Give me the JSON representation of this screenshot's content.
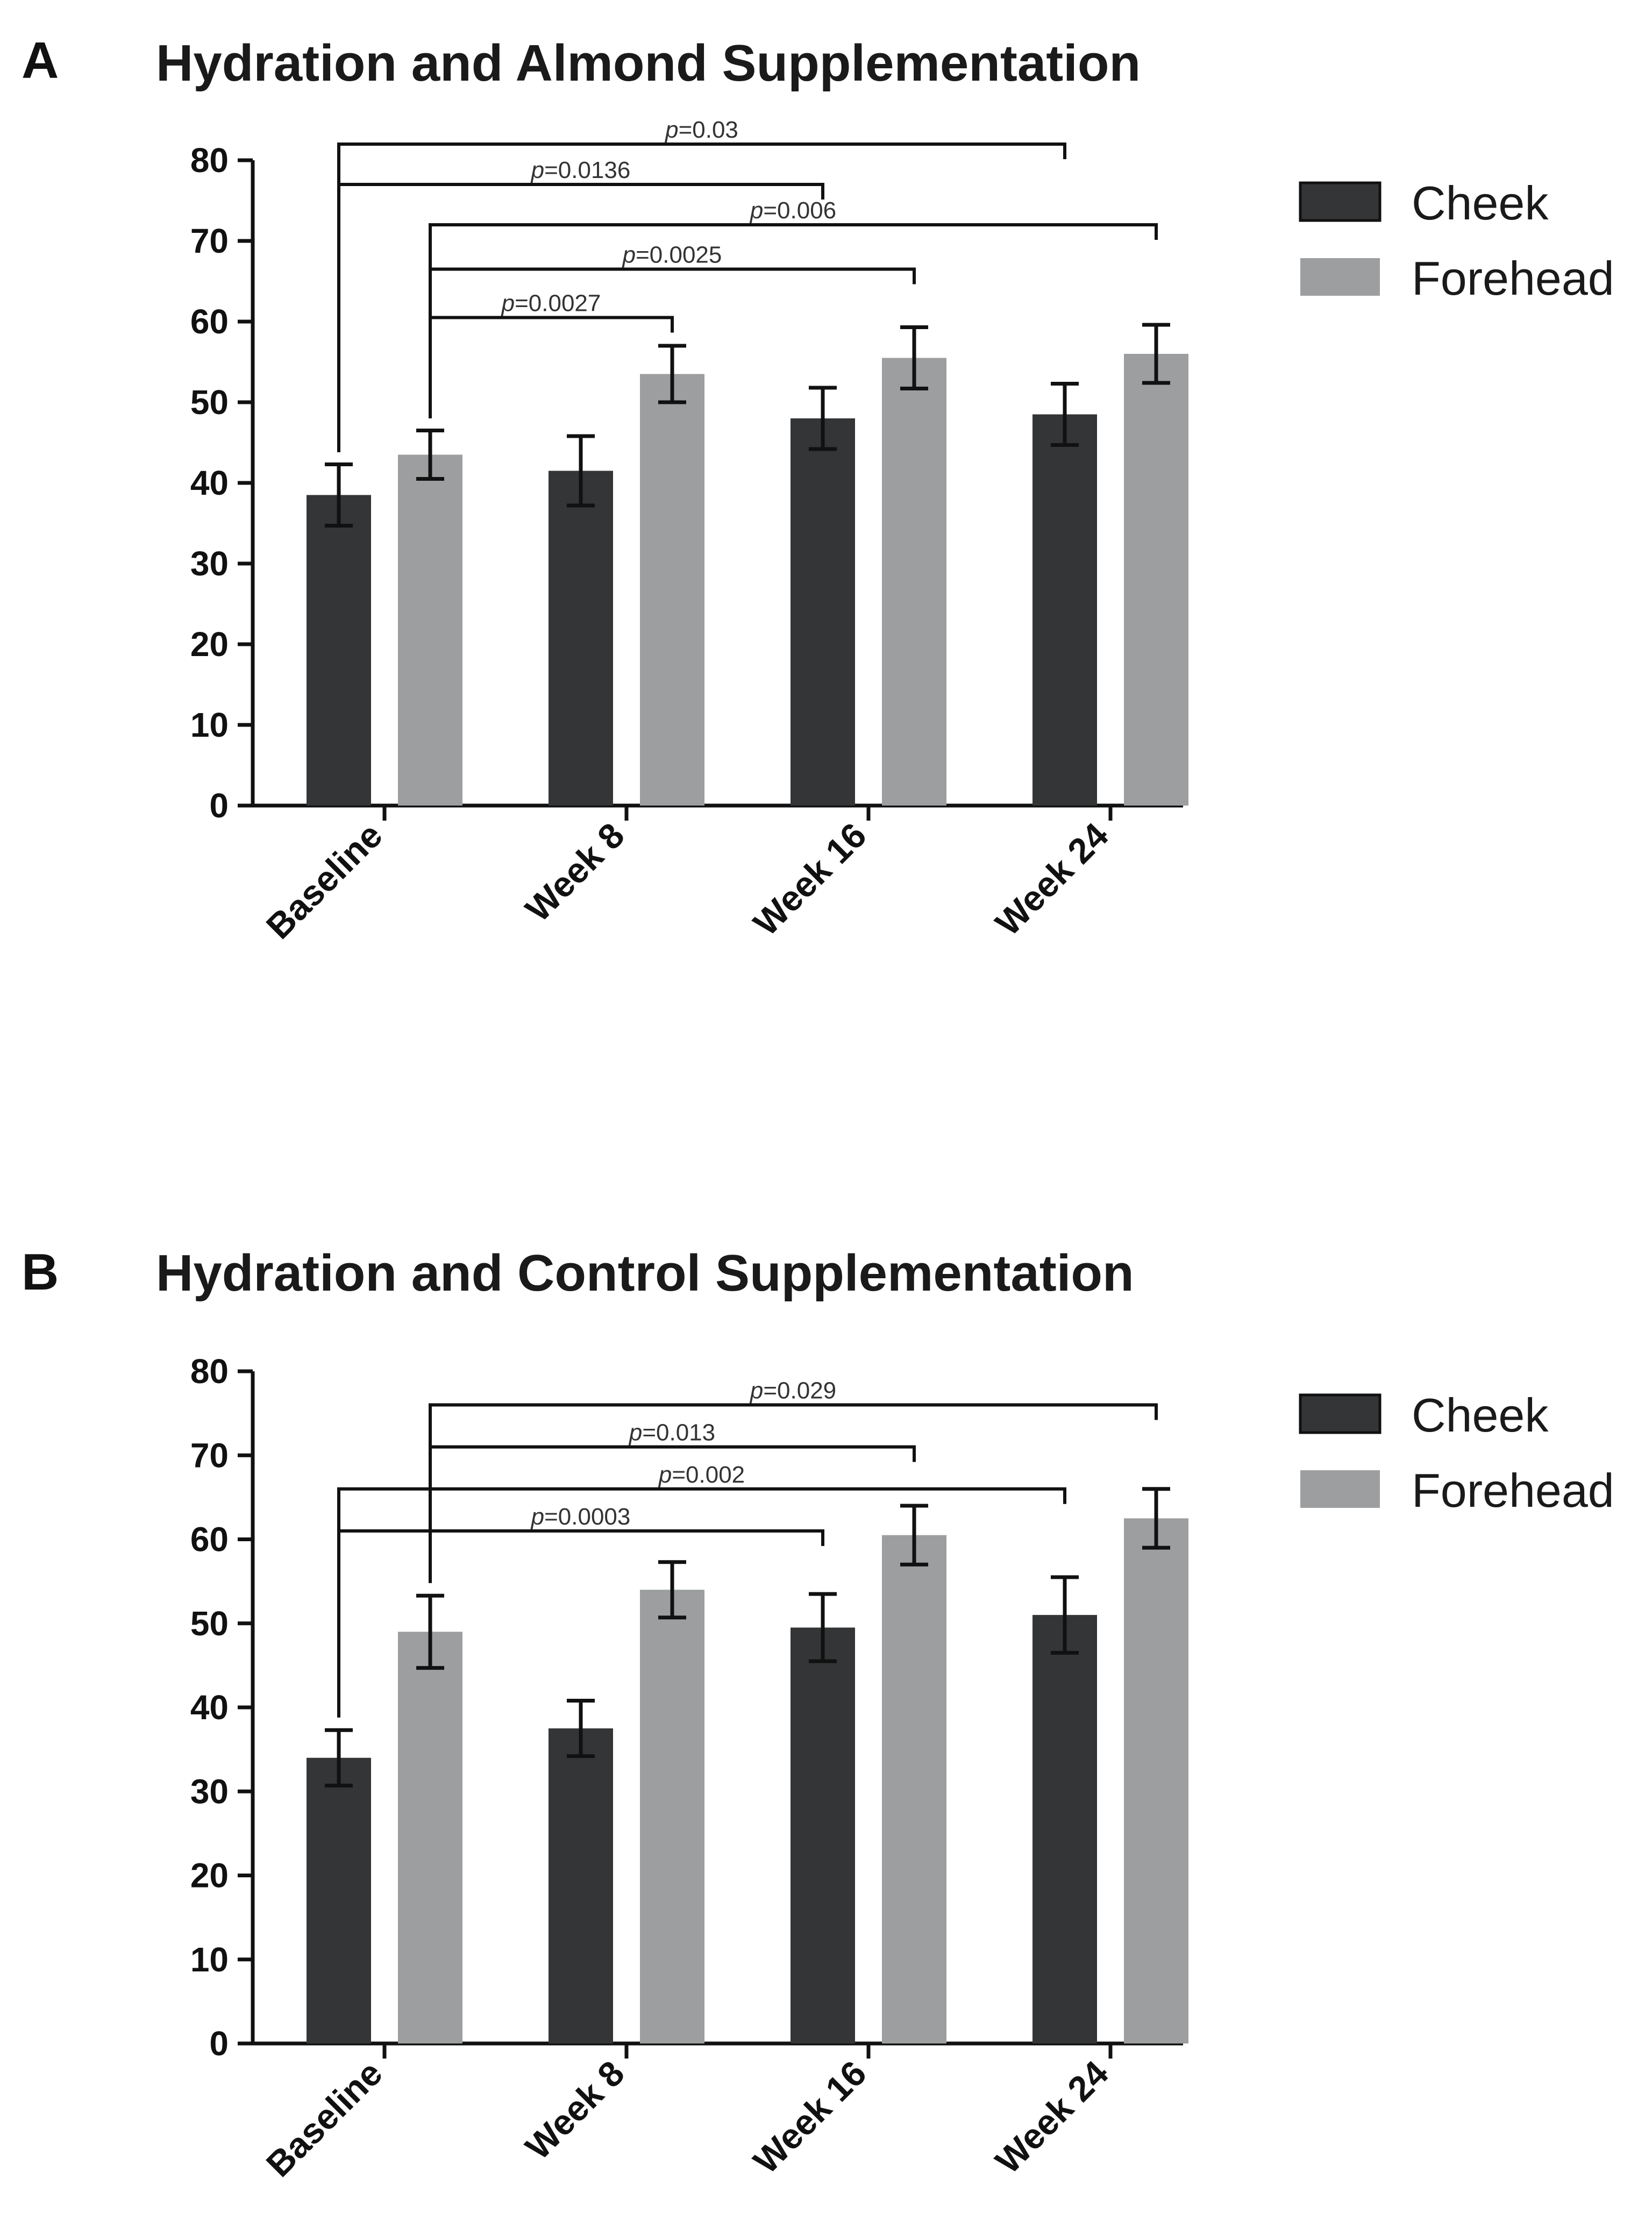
{
  "chart_data": [
    {
      "panel": "A",
      "type": "bar",
      "title": "Hydration and Almond Supplementation",
      "categories": [
        "Baseline",
        "Week 8",
        "Week 16",
        "Week 24"
      ],
      "series": [
        {
          "name": "Cheek",
          "values": [
            38.5,
            41.5,
            48,
            48.5
          ],
          "errors": [
            3.8,
            4.3,
            3.8,
            3.8
          ]
        },
        {
          "name": "Forehead",
          "values": [
            43.5,
            53.5,
            55.5,
            56
          ],
          "errors": [
            3,
            3.5,
            3.8,
            3.6
          ]
        }
      ],
      "ylim": [
        0,
        80
      ],
      "yticks": [
        0,
        10,
        20,
        30,
        40,
        50,
        60,
        70,
        80
      ],
      "colors": {
        "Cheek": "#333536",
        "Forehead": "#9c9ea0"
      },
      "significance": [
        {
          "label": "p=0.03",
          "p": "p",
          "value": "=0.03",
          "from": [
            0,
            0
          ],
          "to": [
            3,
            0
          ],
          "level": 82
        },
        {
          "label": "p=0.0136",
          "p": "p",
          "value": "=0.0136",
          "from": [
            0,
            0
          ],
          "to": [
            2,
            0
          ],
          "level": 77
        },
        {
          "label": "p=0.006",
          "p": "p",
          "value": "=0.006",
          "from": [
            0,
            1
          ],
          "to": [
            3,
            1
          ],
          "level": 72
        },
        {
          "label": "p=0.0025",
          "p": "p",
          "value": "=0.0025",
          "from": [
            0,
            1
          ],
          "to": [
            2,
            1
          ],
          "level": 66.5
        },
        {
          "label": "p=0.0027",
          "p": "p",
          "value": "=0.0027",
          "from": [
            0,
            1
          ],
          "to": [
            1,
            1
          ],
          "level": 60.5
        }
      ]
    },
    {
      "panel": "B",
      "type": "bar",
      "title": "Hydration and Control Supplementation",
      "categories": [
        "Baseline",
        "Week 8",
        "Week 16",
        "Week 24"
      ],
      "series": [
        {
          "name": "Cheek",
          "values": [
            34,
            37.5,
            49.5,
            51
          ],
          "errors": [
            3.3,
            3.3,
            4,
            4.5
          ]
        },
        {
          "name": "Forehead",
          "values": [
            49,
            54,
            60.5,
            62.5
          ],
          "errors": [
            4.3,
            3.3,
            3.5,
            3.5
          ]
        }
      ],
      "ylim": [
        0,
        80
      ],
      "yticks": [
        0,
        10,
        20,
        30,
        40,
        50,
        60,
        70,
        80
      ],
      "colors": {
        "Cheek": "#333536",
        "Forehead": "#9c9ea0"
      },
      "significance": [
        {
          "label": "p=0.029",
          "p": "p",
          "value": "=0.029",
          "from": [
            0,
            1
          ],
          "to": [
            3,
            1
          ],
          "level": 76
        },
        {
          "label": "p=0.013",
          "p": "p",
          "value": "=0.013",
          "from": [
            0,
            1
          ],
          "to": [
            2,
            1
          ],
          "level": 71
        },
        {
          "label": "p=0.002",
          "p": "p",
          "value": "=0.002",
          "from": [
            0,
            0
          ],
          "to": [
            3,
            0
          ],
          "level": 66
        },
        {
          "label": "p=0.0003",
          "p": "p",
          "value": "=0.0003",
          "from": [
            0,
            0
          ],
          "to": [
            2,
            0
          ],
          "level": 61
        }
      ]
    }
  ]
}
